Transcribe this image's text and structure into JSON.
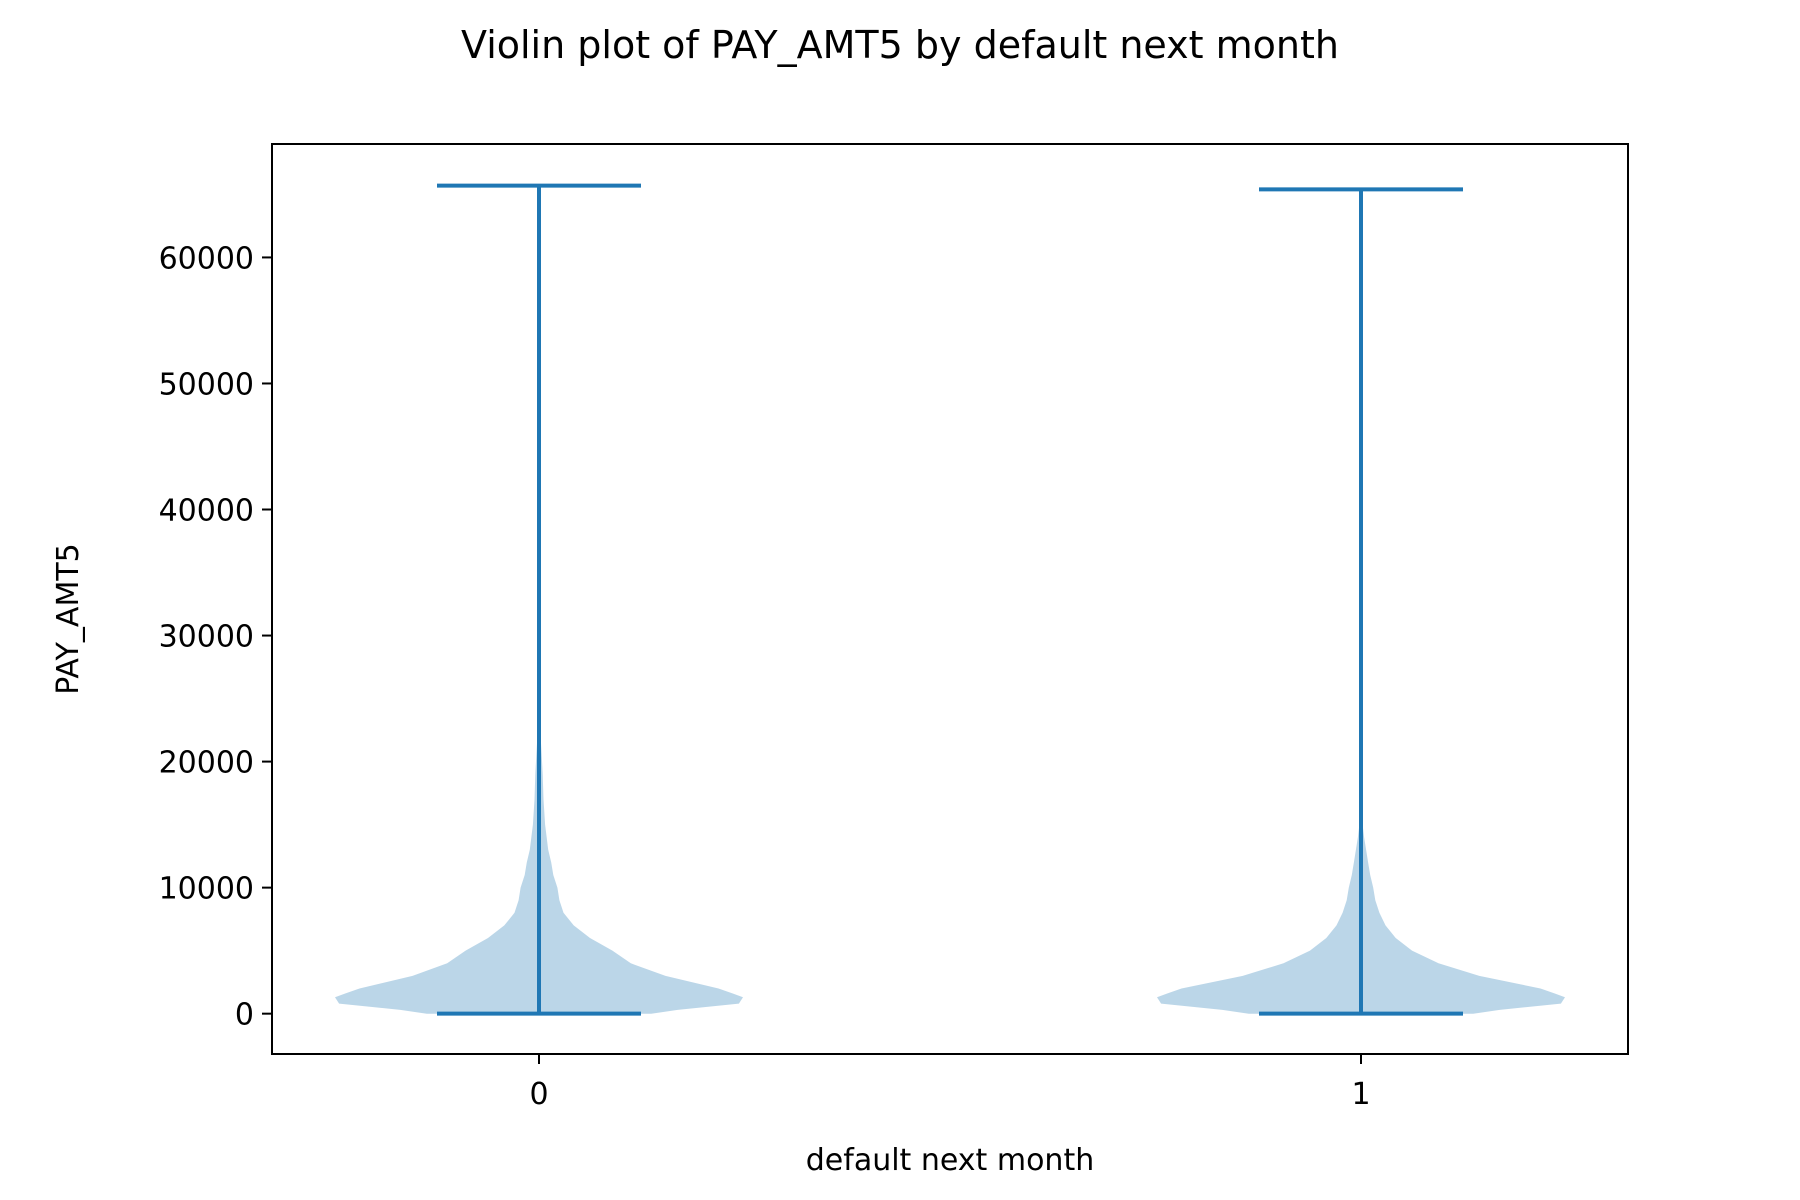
{
  "chart_data": {
    "type": "violin",
    "title": "Violin plot of PAY_AMT5 by default next month",
    "xlabel": "default next month",
    "ylabel": "PAY_AMT5",
    "ylim": [
      -3200,
      69000
    ],
    "yticks": [
      0,
      10000,
      20000,
      30000,
      40000,
      50000,
      60000
    ],
    "categories": [
      "0",
      "1"
    ],
    "color": "#1f77b4",
    "grid": false,
    "series": [
      {
        "category": "0",
        "min": 0,
        "max": 65700,
        "density": [
          [
            0,
            0.55
          ],
          [
            300,
            0.68
          ],
          [
            800,
            0.98
          ],
          [
            1300,
            1.0
          ],
          [
            1600,
            0.95
          ],
          [
            2000,
            0.88
          ],
          [
            3000,
            0.62
          ],
          [
            4000,
            0.45
          ],
          [
            5000,
            0.36
          ],
          [
            6000,
            0.25
          ],
          [
            7000,
            0.17
          ],
          [
            8000,
            0.12
          ],
          [
            9000,
            0.1
          ],
          [
            10000,
            0.09
          ],
          [
            11000,
            0.07
          ],
          [
            12000,
            0.06
          ],
          [
            13000,
            0.045
          ],
          [
            15000,
            0.03
          ],
          [
            17000,
            0.022
          ],
          [
            19000,
            0.018
          ],
          [
            20500,
            0.013
          ],
          [
            22000,
            0.008
          ],
          [
            23500,
            0.003
          ],
          [
            25000,
            0.0
          ]
        ]
      },
      {
        "category": "1",
        "min": 0,
        "max": 65400,
        "density": [
          [
            0,
            0.55
          ],
          [
            300,
            0.68
          ],
          [
            800,
            0.98
          ],
          [
            1300,
            1.0
          ],
          [
            1600,
            0.95
          ],
          [
            2000,
            0.88
          ],
          [
            3000,
            0.58
          ],
          [
            4000,
            0.38
          ],
          [
            5000,
            0.25
          ],
          [
            6000,
            0.17
          ],
          [
            7000,
            0.12
          ],
          [
            8000,
            0.09
          ],
          [
            9000,
            0.07
          ],
          [
            10000,
            0.06
          ],
          [
            11000,
            0.045
          ],
          [
            12000,
            0.035
          ],
          [
            13000,
            0.025
          ],
          [
            14000,
            0.015
          ],
          [
            15000,
            0.008
          ],
          [
            16500,
            0.0
          ]
        ]
      }
    ]
  }
}
